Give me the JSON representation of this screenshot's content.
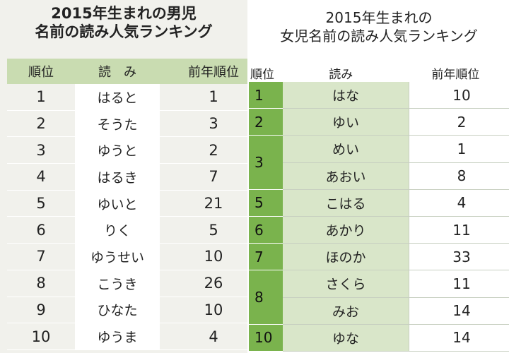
{
  "boys": {
    "title_line1": "2015年生まれの男児",
    "title_line2": "名前の読み人気ランキング",
    "headers": {
      "rank": "順位",
      "reading": "読　み",
      "prev": "前年順位"
    },
    "rows": [
      {
        "rank": "1",
        "reading": "はると",
        "prev": "1"
      },
      {
        "rank": "2",
        "reading": "そうた",
        "prev": "3"
      },
      {
        "rank": "3",
        "reading": "ゆうと",
        "prev": "2"
      },
      {
        "rank": "4",
        "reading": "はるき",
        "prev": "7"
      },
      {
        "rank": "5",
        "reading": "ゆいと",
        "prev": "21"
      },
      {
        "rank": "6",
        "reading": "りく",
        "prev": "5"
      },
      {
        "rank": "7",
        "reading": "ゆうせい",
        "prev": "10"
      },
      {
        "rank": "8",
        "reading": "こうき",
        "prev": "26"
      },
      {
        "rank": "9",
        "reading": "ひなた",
        "prev": "10"
      },
      {
        "rank": "10",
        "reading": "ゆうま",
        "prev": "4"
      }
    ]
  },
  "girls": {
    "title_line1": "2015年生まれの",
    "title_line2": "女児名前の読み人気ランキング",
    "headers": {
      "rank": "順位",
      "reading": "読み",
      "prev": "前年順位"
    },
    "rows": [
      {
        "rank": "1",
        "reading": "はな",
        "prev": "10"
      },
      {
        "rank": "2",
        "reading": "ゆい",
        "prev": "2"
      },
      {
        "rank": "3",
        "reading": "めい",
        "prev": "1"
      },
      {
        "rank": "",
        "reading": "あおい",
        "prev": "8"
      },
      {
        "rank": "5",
        "reading": "こはる",
        "prev": "4"
      },
      {
        "rank": "6",
        "reading": "あかり",
        "prev": "11"
      },
      {
        "rank": "7",
        "reading": "ほのか",
        "prev": "33"
      },
      {
        "rank": "8",
        "reading": "さくら",
        "prev": "11"
      },
      {
        "rank": "",
        "reading": "みお",
        "prev": "14"
      },
      {
        "rank": "10",
        "reading": "ゆな",
        "prev": "14"
      }
    ]
  }
}
